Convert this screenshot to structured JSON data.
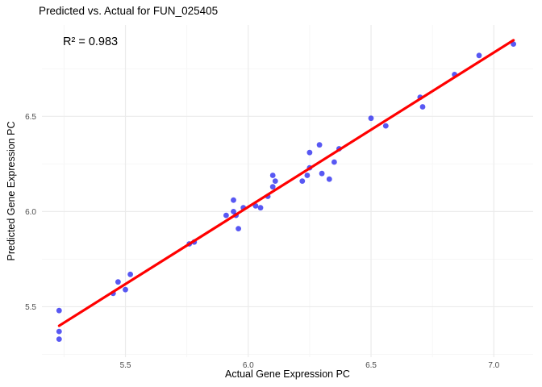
{
  "chart_data": {
    "type": "scatter",
    "title": "Predicted vs. Actual for FUN_025405",
    "annotation": "R² = 0.983",
    "xlabel": "Actual Gene Expression PC",
    "ylabel": "Predicted Gene Expression PC",
    "legend": "none",
    "grid": "on",
    "x_axis": {
      "range": [
        5.16,
        7.16
      ],
      "ticks": [
        5.5,
        6.0,
        6.5,
        7.0
      ],
      "tick_labels": [
        "5.5",
        "6.0",
        "6.5",
        "7.0"
      ],
      "minor_ticks": [
        5.25,
        5.75,
        6.25,
        6.75
      ]
    },
    "y_axis": {
      "range": [
        5.235,
        6.98
      ],
      "ticks": [
        5.5,
        6.0,
        6.5
      ],
      "tick_labels": [
        "5.5",
        "6.0",
        "6.5"
      ],
      "minor_ticks": [
        5.25,
        5.75,
        6.25,
        6.75
      ]
    },
    "points": [
      [
        5.23,
        5.48
      ],
      [
        5.23,
        5.37
      ],
      [
        5.23,
        5.33
      ],
      [
        5.45,
        5.57
      ],
      [
        5.47,
        5.63
      ],
      [
        5.5,
        5.59
      ],
      [
        5.52,
        5.67
      ],
      [
        5.76,
        5.83
      ],
      [
        5.78,
        5.84
      ],
      [
        5.91,
        5.98
      ],
      [
        5.94,
        6.0
      ],
      [
        5.95,
        5.98
      ],
      [
        5.94,
        6.06
      ],
      [
        5.96,
        5.91
      ],
      [
        5.98,
        6.02
      ],
      [
        6.03,
        6.03
      ],
      [
        6.05,
        6.02
      ],
      [
        6.08,
        6.08
      ],
      [
        6.1,
        6.13
      ],
      [
        6.1,
        6.19
      ],
      [
        6.11,
        6.16
      ],
      [
        6.22,
        6.16
      ],
      [
        6.24,
        6.19
      ],
      [
        6.25,
        6.23
      ],
      [
        6.25,
        6.31
      ],
      [
        6.29,
        6.35
      ],
      [
        6.3,
        6.2
      ],
      [
        6.33,
        6.17
      ],
      [
        6.35,
        6.26
      ],
      [
        6.37,
        6.33
      ],
      [
        6.5,
        6.49
      ],
      [
        6.56,
        6.45
      ],
      [
        6.7,
        6.6
      ],
      [
        6.71,
        6.55
      ],
      [
        6.84,
        6.72
      ],
      [
        6.94,
        6.82
      ],
      [
        7.08,
        6.88
      ]
    ],
    "regression_line": {
      "x1": 5.23,
      "y1": 5.4,
      "x2": 7.08,
      "y2": 6.9
    },
    "colors": {
      "background": "#ffffff",
      "point": "#2e2ef0",
      "line": "#ff0000",
      "grid_major": "#ebebeb",
      "grid_minor": "#f5f5f5",
      "tick_label": "#4d4d4d",
      "text": "#000000"
    }
  }
}
